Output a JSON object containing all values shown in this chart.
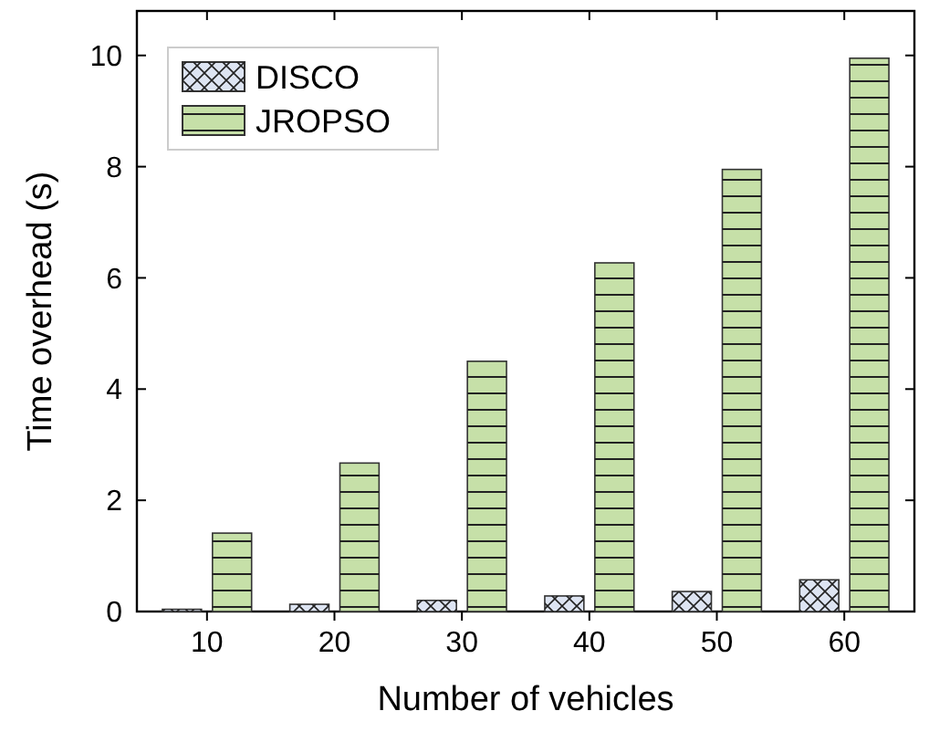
{
  "chart_data": {
    "type": "bar",
    "xlabel": "Number of vehicles",
    "ylabel": "Time overhead (s)",
    "categories": [
      "10",
      "20",
      "30",
      "40",
      "50",
      "60"
    ],
    "series": [
      {
        "name": "DISCO",
        "color": "#dde4f2",
        "values": [
          0.04,
          0.13,
          0.2,
          0.28,
          0.36,
          0.57
        ]
      },
      {
        "name": "JROPSO",
        "color": "#c6e0a8",
        "values": [
          1.41,
          2.67,
          4.5,
          6.27,
          7.95,
          9.95
        ]
      }
    ],
    "ylim": [
      0,
      10.8
    ],
    "yticks": [
      0,
      2,
      4,
      6,
      8,
      10
    ],
    "legend": "top left",
    "grid": false
  }
}
